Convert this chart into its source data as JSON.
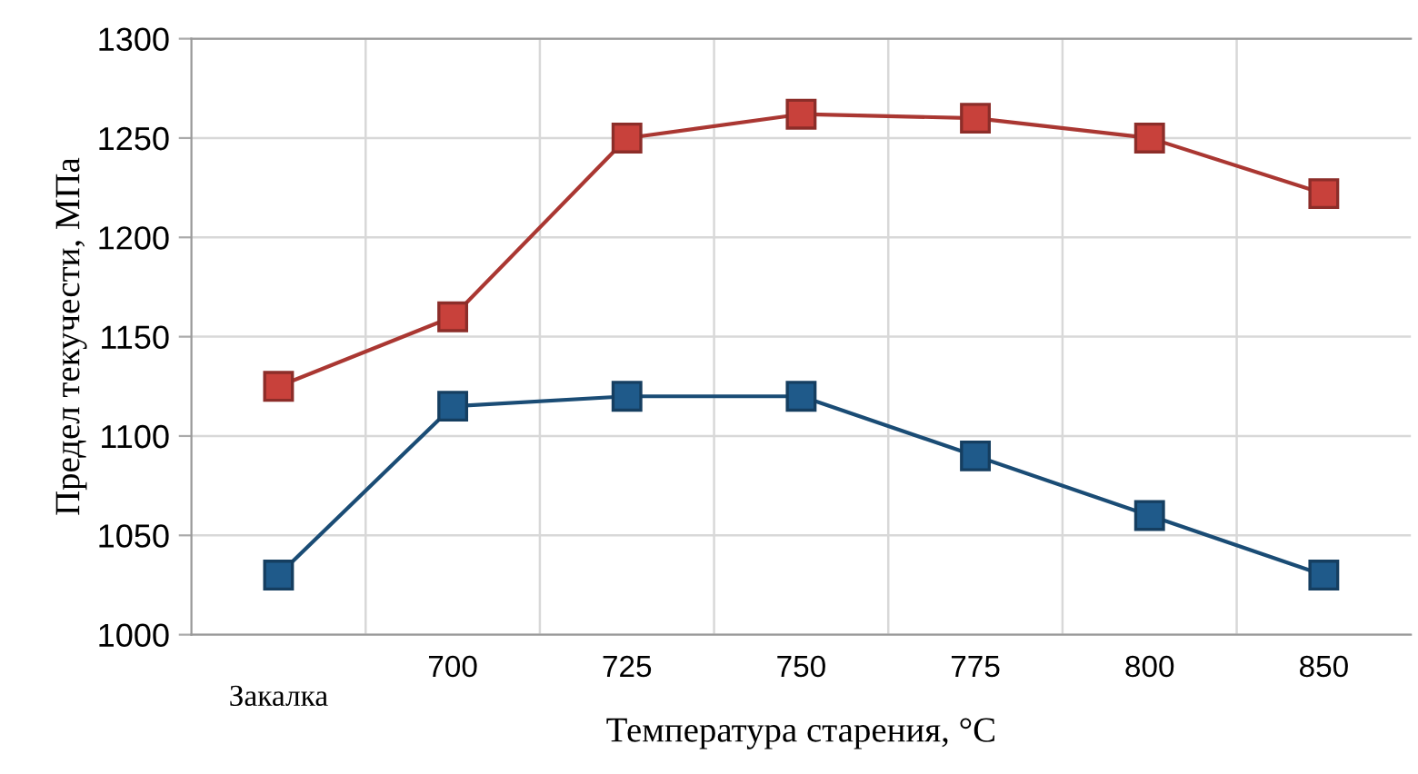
{
  "chart_data": {
    "type": "line",
    "xlabel": "Температура старения, °C",
    "ylabel": "Предел текучести, МПа",
    "categories": [
      "Закалка",
      "700",
      "725",
      "750",
      "775",
      "800",
      "850"
    ],
    "series": [
      {
        "color": "#c8413b",
        "values": [
          1125,
          1160,
          1250,
          1262,
          1260,
          1250,
          1222
        ]
      },
      {
        "color": "#1f5a8a",
        "values": [
          1030,
          1115,
          1120,
          1120,
          1090,
          1060,
          1030
        ]
      }
    ],
    "ylim": [
      1000,
      1300
    ],
    "yticks": [
      1000,
      1050,
      1100,
      1150,
      1200,
      1250,
      1300
    ],
    "grid": true,
    "marker": "square",
    "line_style": "solid"
  }
}
